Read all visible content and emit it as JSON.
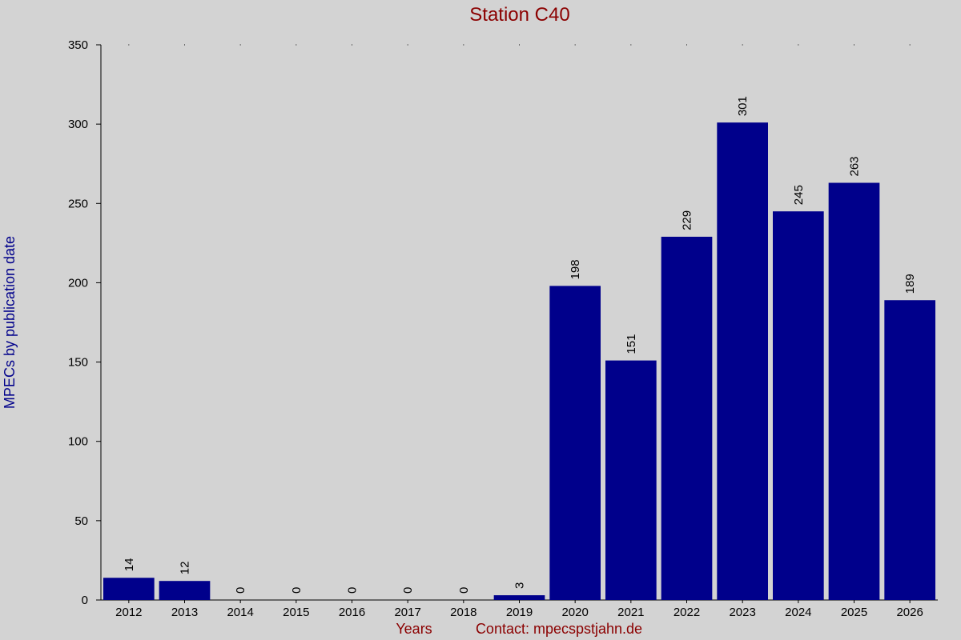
{
  "chart_data": {
    "type": "bar",
    "title": "Station C40",
    "xlabel": "Years",
    "ylabel": "MPECs by publication date",
    "footer": "Contact: mpecspstjahn.de",
    "categories": [
      "2012",
      "2013",
      "2014",
      "2015",
      "2016",
      "2017",
      "2018",
      "2019",
      "2020",
      "2021",
      "2022",
      "2023",
      "2024",
      "2025",
      "2026"
    ],
    "values": [
      14,
      12,
      0,
      0,
      0,
      0,
      0,
      3,
      198,
      151,
      229,
      301,
      245,
      263,
      189
    ],
    "ylim": [
      0,
      350
    ],
    "yticks": [
      0,
      50,
      100,
      150,
      200,
      250,
      300,
      350
    ],
    "grid": false,
    "data_labels": true,
    "colors": {
      "bar": "#00008b",
      "background": "#d3d3d3",
      "title": "#8b0000",
      "ylabel": "#00008b",
      "xlabel": "#8b0000"
    }
  }
}
